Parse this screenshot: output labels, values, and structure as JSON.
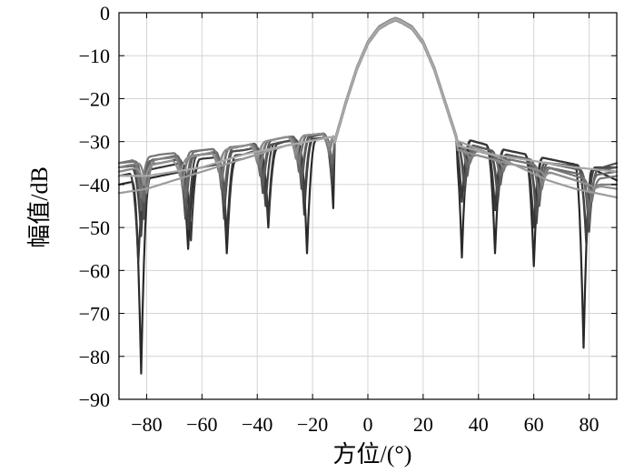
{
  "chart_data": {
    "type": "line",
    "title": "",
    "xlabel": "方位/(°)",
    "ylabel": "幅值/dB",
    "xlim": [
      -90,
      90
    ],
    "ylim": [
      -90,
      0
    ],
    "xticks": [
      -80,
      -60,
      -40,
      -20,
      0,
      20,
      40,
      60,
      80
    ],
    "yticks": [
      0,
      -10,
      -20,
      -30,
      -40,
      -50,
      -60,
      -70,
      -80,
      -90
    ],
    "xtick_labels": [
      "−80",
      "−60",
      "−40",
      "−20",
      "0",
      "20",
      "40",
      "60",
      "80"
    ],
    "ytick_labels": [
      "0",
      "−10",
      "−20",
      "−30",
      "−40",
      "−50",
      "−60",
      "−70",
      "−80",
      "−90"
    ],
    "grid": true,
    "legend": "none",
    "series_color_range": [
      "#2a2a2a",
      "#a8a8a8"
    ],
    "main_lobe": {
      "x": [
        -12,
        -8,
        -4,
        0,
        4,
        8,
        10,
        12,
        16,
        20,
        24,
        28,
        32
      ],
      "y": [
        -30,
        -21,
        -13,
        -7,
        -3.5,
        -2,
        -1.5,
        -2,
        -3.5,
        -7,
        -13,
        -21,
        -29
      ]
    },
    "series": [
      {
        "left_nulls": [
          [
            -82,
            -84
          ],
          [
            -65,
            -55
          ],
          [
            -51,
            -56
          ],
          [
            -36,
            -50
          ],
          [
            -22,
            -56
          ],
          [
            -12,
            -53
          ]
        ],
        "right_nulls": [
          [
            34,
            -57
          ],
          [
            46,
            -56
          ],
          [
            60,
            -59
          ],
          [
            78,
            -78
          ]
        ],
        "left_floor": [
          [
            -90,
            -40
          ],
          [
            -75,
            -38
          ],
          [
            -60,
            -36
          ],
          [
            -45,
            -34
          ],
          [
            -30,
            -31
          ],
          [
            -14,
            -29
          ]
        ],
        "right_floor": [
          [
            33,
            -29
          ],
          [
            50,
            -32
          ],
          [
            65,
            -34
          ],
          [
            80,
            -36
          ],
          [
            90,
            -39
          ]
        ]
      },
      {
        "left_nulls": [
          [
            -83,
            -58
          ],
          [
            -64,
            -53
          ],
          [
            -51,
            -52
          ],
          [
            -36,
            -48
          ],
          [
            -23,
            -47
          ],
          [
            -12,
            -43
          ]
        ],
        "right_nulls": [
          [
            34,
            -44
          ],
          [
            46,
            -46
          ],
          [
            60,
            -50
          ],
          [
            79,
            -54
          ]
        ],
        "left_floor": [
          [
            -90,
            -38
          ],
          [
            -75,
            -36
          ],
          [
            -60,
            -34
          ],
          [
            -45,
            -33
          ],
          [
            -30,
            -30
          ],
          [
            -14,
            -29
          ]
        ],
        "right_floor": [
          [
            33,
            -29
          ],
          [
            50,
            -32
          ],
          [
            65,
            -34
          ],
          [
            80,
            -36
          ],
          [
            90,
            -37
          ]
        ]
      },
      {
        "left_nulls": [
          [
            -82,
            -52
          ],
          [
            -65,
            -50
          ],
          [
            -52,
            -48
          ],
          [
            -37,
            -45
          ],
          [
            -23,
            -44
          ],
          [
            -13,
            -40
          ]
        ],
        "right_nulls": [
          [
            35,
            -42
          ],
          [
            47,
            -44
          ],
          [
            61,
            -49
          ],
          [
            79,
            -52
          ]
        ],
        "left_floor": [
          [
            -90,
            -37
          ],
          [
            -75,
            -35
          ],
          [
            -60,
            -33
          ],
          [
            -45,
            -32
          ],
          [
            -30,
            -30
          ],
          [
            -14,
            -28
          ]
        ],
        "right_floor": [
          [
            33,
            -30
          ],
          [
            50,
            -33
          ],
          [
            65,
            -35
          ],
          [
            80,
            -36
          ],
          [
            90,
            -36
          ]
        ]
      },
      {
        "left_nulls": [
          [
            -81,
            -48
          ],
          [
            -66,
            -48
          ],
          [
            -52,
            -45
          ],
          [
            -38,
            -42
          ],
          [
            -24,
            -41
          ],
          [
            -13,
            -38
          ]
        ],
        "right_nulls": [
          [
            35,
            -40
          ],
          [
            47,
            -42
          ],
          [
            61,
            -47
          ],
          [
            80,
            -51
          ]
        ],
        "left_floor": [
          [
            -90,
            -36
          ],
          [
            -75,
            -35
          ],
          [
            -60,
            -33
          ],
          [
            -45,
            -32
          ],
          [
            -30,
            -30
          ],
          [
            -14,
            -28
          ]
        ],
        "right_floor": [
          [
            33,
            -30
          ],
          [
            50,
            -33
          ],
          [
            65,
            -35
          ],
          [
            80,
            -37
          ],
          [
            90,
            -35
          ]
        ]
      },
      {
        "left_nulls": [
          [
            -82,
            -46
          ],
          [
            -66,
            -45
          ],
          [
            -52,
            -43
          ],
          [
            -38,
            -40
          ],
          [
            -24,
            -39
          ],
          [
            -13,
            -36
          ]
        ],
        "right_nulls": [
          [
            36,
            -38
          ],
          [
            48,
            -40
          ],
          [
            62,
            -45
          ],
          [
            80,
            -49
          ]
        ],
        "left_floor": [
          [
            -90,
            -36
          ],
          [
            -75,
            -34
          ],
          [
            -60,
            -33
          ],
          [
            -45,
            -31
          ],
          [
            -30,
            -29
          ],
          [
            -14,
            -28
          ]
        ],
        "right_floor": [
          [
            33,
            -30
          ],
          [
            50,
            -33
          ],
          [
            65,
            -35
          ],
          [
            80,
            -37
          ],
          [
            90,
            -36
          ]
        ]
      },
      {
        "left_nulls": [
          [
            -81,
            -44
          ],
          [
            -66,
            -43
          ],
          [
            -53,
            -41
          ],
          [
            -39,
            -38
          ],
          [
            -25,
            -37
          ],
          [
            -13,
            -35
          ]
        ],
        "right_nulls": [
          [
            36,
            -36
          ],
          [
            48,
            -38
          ],
          [
            62,
            -43
          ],
          [
            80,
            -46
          ]
        ],
        "left_floor": [
          [
            -90,
            -35
          ],
          [
            -75,
            -34
          ],
          [
            -60,
            -32
          ],
          [
            -45,
            -31
          ],
          [
            -30,
            -29
          ],
          [
            -14,
            -28
          ]
        ],
        "right_floor": [
          [
            33,
            -31
          ],
          [
            50,
            -34
          ],
          [
            65,
            -36
          ],
          [
            80,
            -38
          ],
          [
            90,
            -37
          ]
        ]
      },
      {
        "left_nulls": [
          [
            -82,
            -43
          ],
          [
            -67,
            -41
          ],
          [
            -53,
            -39
          ],
          [
            -39,
            -36
          ],
          [
            -25,
            -35
          ],
          [
            -14,
            -33
          ]
        ],
        "right_nulls": [
          [
            37,
            -35
          ],
          [
            49,
            -37
          ],
          [
            63,
            -41
          ],
          [
            81,
            -44
          ]
        ],
        "left_floor": [
          [
            -90,
            -35
          ],
          [
            -75,
            -33
          ],
          [
            -60,
            -32
          ],
          [
            -45,
            -31
          ],
          [
            -30,
            -29
          ],
          [
            -14,
            -28
          ]
        ],
        "right_floor": [
          [
            33,
            -31
          ],
          [
            50,
            -34
          ],
          [
            65,
            -36
          ],
          [
            80,
            -39
          ],
          [
            90,
            -38
          ]
        ]
      },
      {
        "left_nulls": [
          [
            -80,
            -42
          ],
          [
            -67,
            -40
          ],
          [
            -54,
            -37
          ],
          [
            -40,
            -35
          ],
          [
            -26,
            -34
          ],
          [
            -14,
            -32
          ]
        ],
        "right_nulls": [
          [
            37,
            -34
          ],
          [
            49,
            -36
          ],
          [
            63,
            -40
          ],
          [
            81,
            -42
          ]
        ],
        "left_floor": [
          [
            -90,
            -36
          ],
          [
            -75,
            -34
          ],
          [
            -60,
            -33
          ],
          [
            -45,
            -31
          ],
          [
            -30,
            -29
          ],
          [
            -14,
            -28
          ]
        ],
        "right_floor": [
          [
            33,
            -32
          ],
          [
            50,
            -35
          ],
          [
            65,
            -37
          ],
          [
            80,
            -40
          ],
          [
            90,
            -40
          ]
        ]
      },
      {
        "left_nulls": [
          [
            -81,
            -40
          ],
          [
            -68,
            -38
          ],
          [
            -54,
            -36
          ],
          [
            -40,
            -34
          ],
          [
            -26,
            -33
          ],
          [
            -14,
            -31
          ]
        ],
        "right_nulls": [
          [
            38,
            -33
          ],
          [
            50,
            -35
          ],
          [
            64,
            -38
          ],
          [
            82,
            -41
          ]
        ],
        "left_floor": [
          [
            -90,
            -37
          ],
          [
            -75,
            -35
          ],
          [
            -60,
            -33
          ],
          [
            -45,
            -31
          ],
          [
            -30,
            -29
          ],
          [
            -14,
            -28
          ]
        ],
        "right_floor": [
          [
            33,
            -32
          ],
          [
            50,
            -35
          ],
          [
            65,
            -37
          ],
          [
            80,
            -40
          ],
          [
            90,
            -41
          ]
        ]
      },
      {
        "left_nulls": [],
        "right_nulls": [],
        "left_floor": [
          [
            -90,
            -42
          ],
          [
            -80,
            -41
          ],
          [
            -70,
            -39
          ],
          [
            -60,
            -37
          ],
          [
            -45,
            -34
          ],
          [
            -30,
            -31
          ],
          [
            -14,
            -29
          ]
        ],
        "right_floor": [
          [
            33,
            -30
          ],
          [
            45,
            -33
          ],
          [
            55,
            -36
          ],
          [
            65,
            -39
          ],
          [
            75,
            -41
          ],
          [
            90,
            -43
          ]
        ]
      },
      {
        "left_nulls": [],
        "right_nulls": [],
        "left_floor": [
          [
            -90,
            -38
          ],
          [
            -80,
            -38
          ],
          [
            -70,
            -37
          ],
          [
            -60,
            -36
          ],
          [
            -45,
            -33
          ],
          [
            -30,
            -31
          ],
          [
            -14,
            -29
          ]
        ],
        "right_floor": [
          [
            33,
            -31
          ],
          [
            45,
            -33
          ],
          [
            55,
            -34
          ],
          [
            65,
            -35
          ],
          [
            75,
            -36
          ],
          [
            90,
            -37
          ]
        ]
      }
    ]
  }
}
